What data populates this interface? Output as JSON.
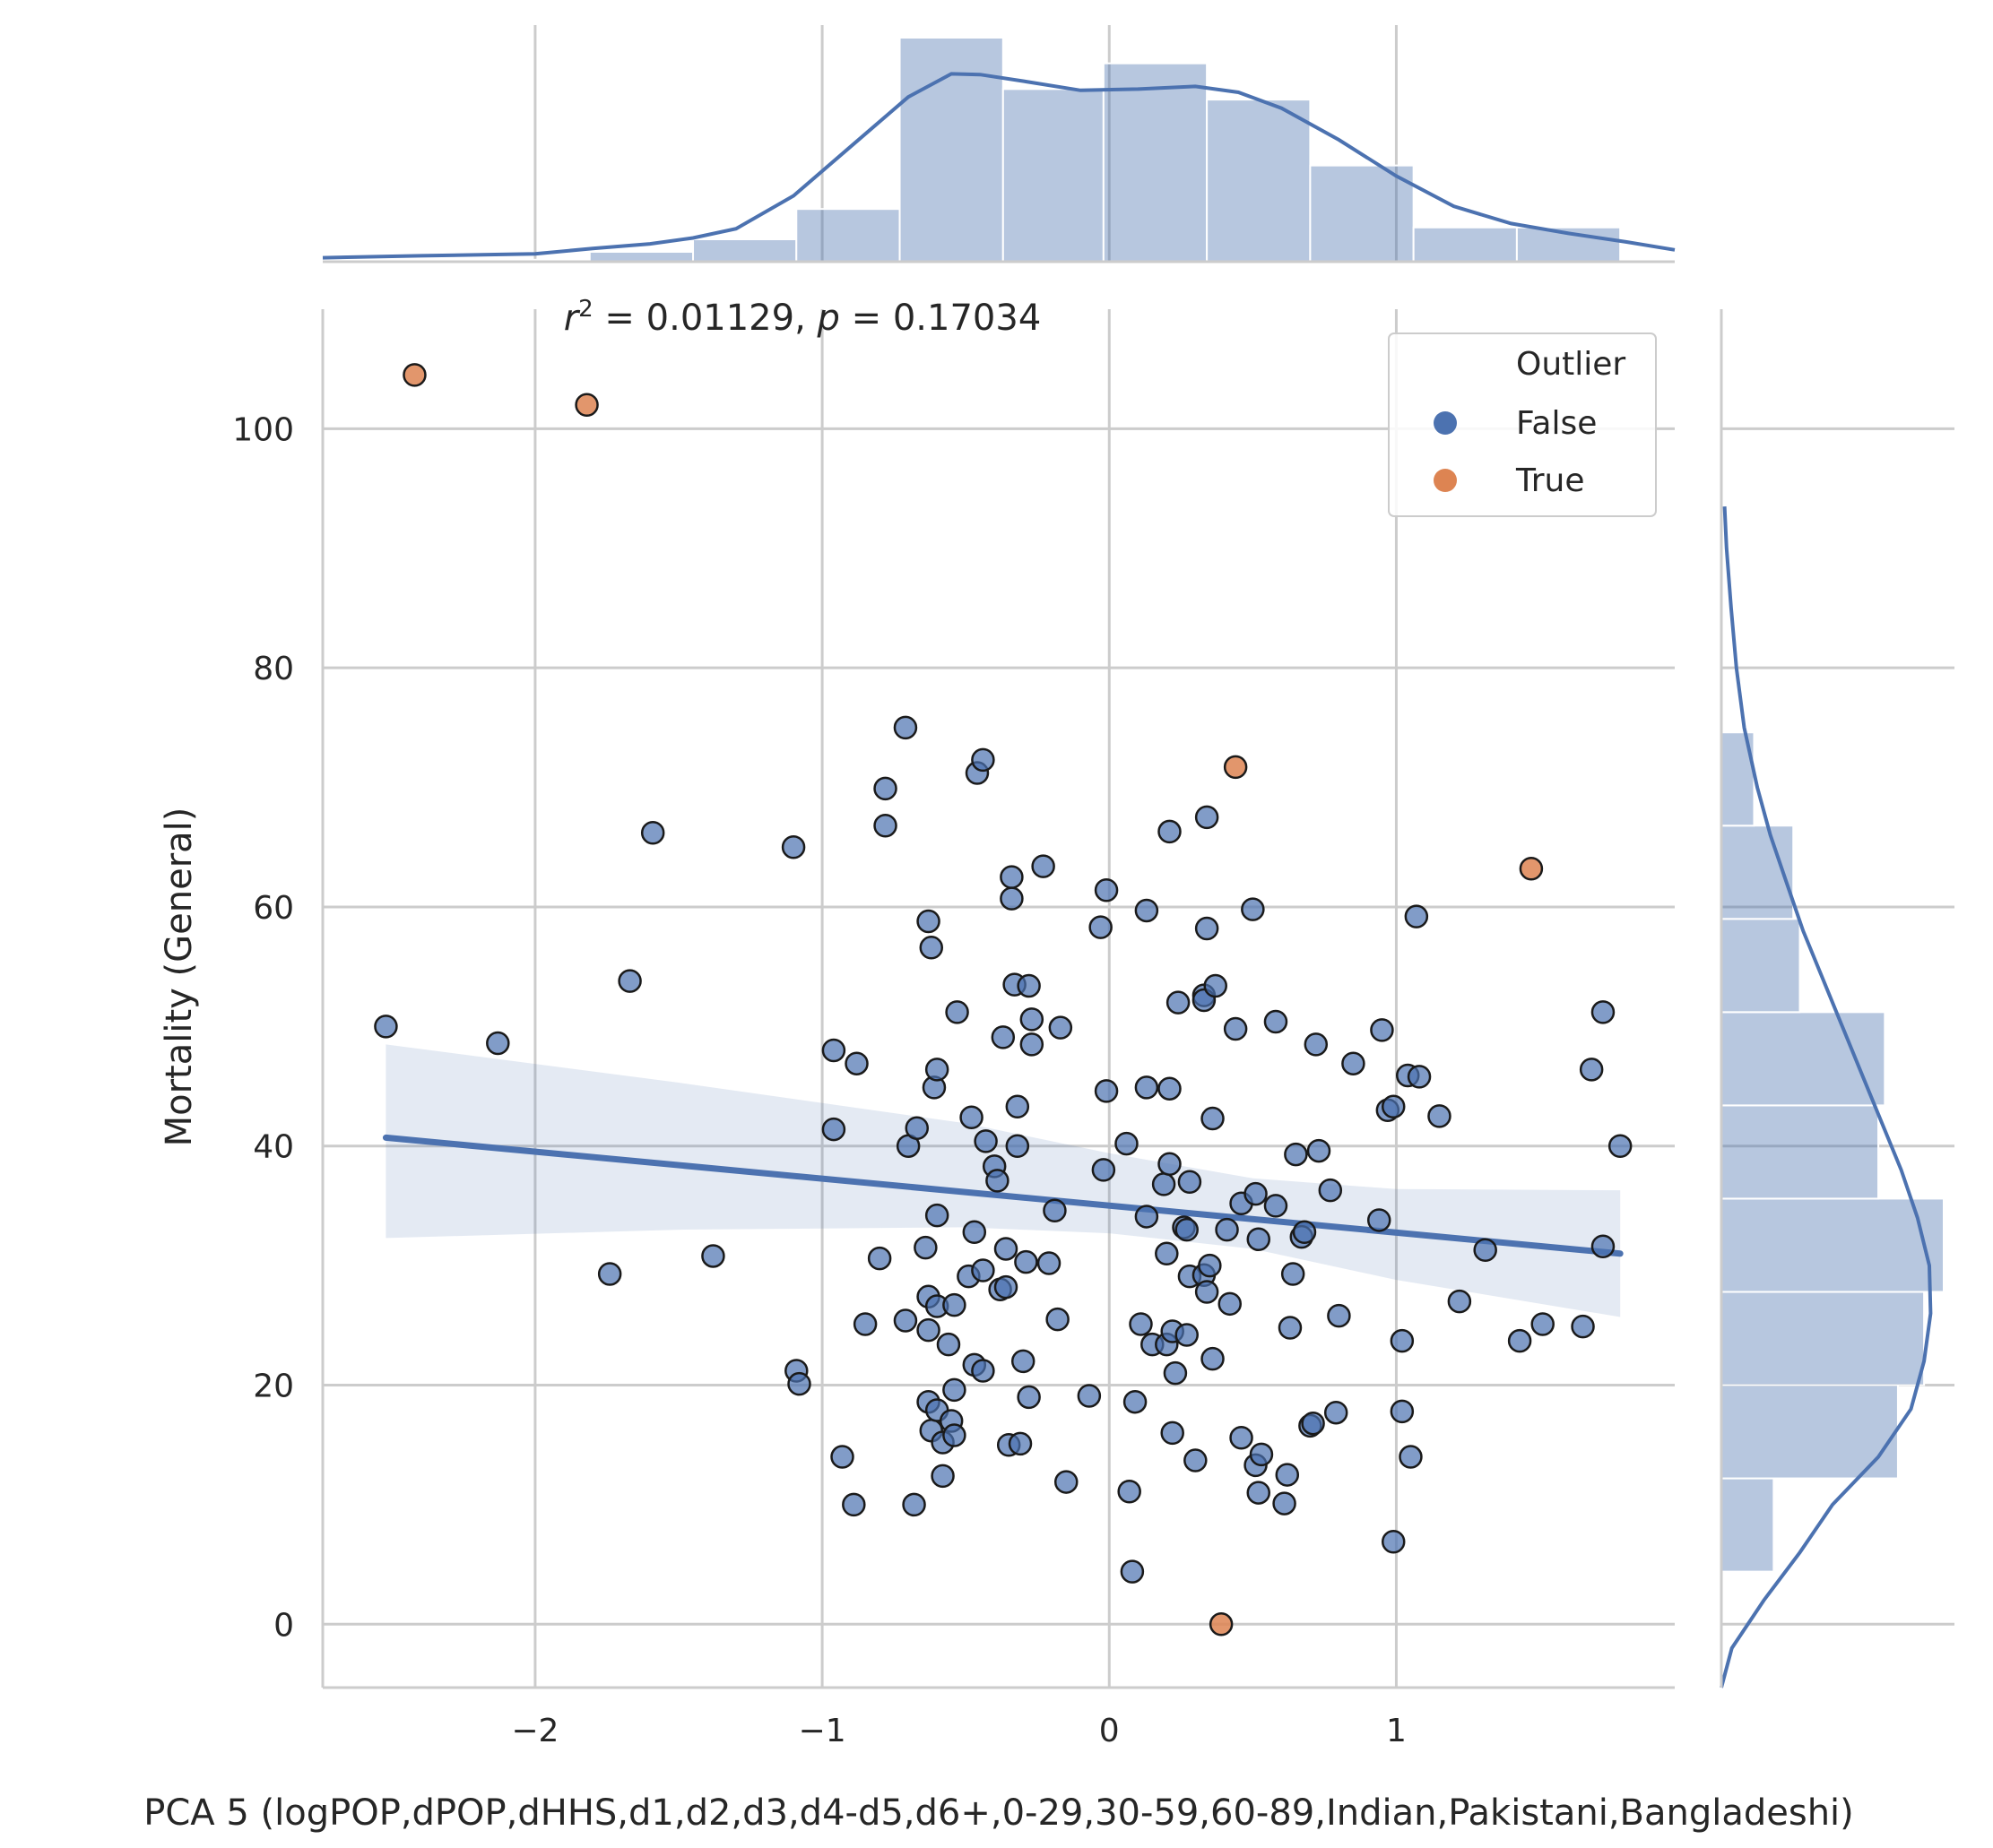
{
  "chart_data": {
    "type": "scatter",
    "annotation": {
      "r_sym": "r",
      "r_sup": "2",
      "rest": " = 0.01129, ",
      "p_sym": "p",
      "p_rest": " = 0.17034"
    },
    "xlabel": "PCA 5 (logPOP,dPOP,dHHS,d1,d2,d3,d4-d5,d6+,0-29,30-59,60-89,Indian,Pakistani,Bangladeshi)",
    "ylabel": "Mortality (General)",
    "xlim": [
      -2.74,
      1.97
    ],
    "ylim": [
      -5.3,
      110
    ],
    "xticks": [
      -2,
      -1,
      0,
      1
    ],
    "xtick_labels": [
      "−2",
      "−1",
      "0",
      "1"
    ],
    "yticks": [
      0,
      20,
      40,
      60,
      80,
      100
    ],
    "ytick_labels": [
      "0",
      "20",
      "40",
      "60",
      "80",
      "100"
    ],
    "grid": true,
    "legend": {
      "title": "Outlier",
      "placement": "top-right",
      "entries": [
        {
          "label": "False",
          "color": "#4c72b0"
        },
        {
          "label": "True",
          "color": "#dd8452"
        }
      ]
    },
    "colors": {
      "false": "#4c72b0",
      "true": "#dd8452",
      "grid": "#cccccc"
    },
    "series": [
      {
        "name": "False",
        "points": [
          [
            -2.52,
            50.0
          ],
          [
            -2.13,
            48.6
          ],
          [
            -1.74,
            29.3
          ],
          [
            -1.67,
            53.8
          ],
          [
            -1.59,
            66.2
          ],
          [
            -1.38,
            30.8
          ],
          [
            -1.1,
            65.0
          ],
          [
            -1.09,
            21.2
          ],
          [
            -1.08,
            20.1
          ],
          [
            -0.96,
            48.0
          ],
          [
            -0.96,
            41.4
          ],
          [
            -0.93,
            14.0
          ],
          [
            -0.89,
            10.0
          ],
          [
            -0.88,
            46.9
          ],
          [
            -0.85,
            25.1
          ],
          [
            -0.8,
            30.6
          ],
          [
            -0.78,
            69.9
          ],
          [
            -0.78,
            66.8
          ],
          [
            -0.71,
            75.0
          ],
          [
            -0.71,
            25.4
          ],
          [
            -0.7,
            40.0
          ],
          [
            -0.68,
            10.0
          ],
          [
            -0.67,
            41.5
          ],
          [
            -0.64,
            31.5
          ],
          [
            -0.63,
            27.4
          ],
          [
            -0.63,
            24.6
          ],
          [
            -0.63,
            18.6
          ],
          [
            -0.63,
            58.8
          ],
          [
            -0.62,
            56.6
          ],
          [
            -0.62,
            16.2
          ],
          [
            -0.61,
            44.9
          ],
          [
            -0.6,
            26.6
          ],
          [
            -0.6,
            46.4
          ],
          [
            -0.6,
            17.9
          ],
          [
            -0.6,
            34.2
          ],
          [
            -0.58,
            15.2
          ],
          [
            -0.58,
            12.4
          ],
          [
            -0.56,
            23.4
          ],
          [
            -0.55,
            17.0
          ],
          [
            -0.54,
            15.8
          ],
          [
            -0.54,
            26.7
          ],
          [
            -0.54,
            19.6
          ],
          [
            -0.53,
            51.2
          ],
          [
            -0.49,
            29.1
          ],
          [
            -0.48,
            42.4
          ],
          [
            -0.47,
            21.7
          ],
          [
            -0.47,
            32.8
          ],
          [
            -0.46,
            71.2
          ],
          [
            -0.44,
            72.3
          ],
          [
            -0.44,
            21.2
          ],
          [
            -0.44,
            29.6
          ],
          [
            -0.43,
            40.4
          ],
          [
            -0.4,
            38.3
          ],
          [
            -0.39,
            37.1
          ],
          [
            -0.38,
            28.0
          ],
          [
            -0.37,
            49.1
          ],
          [
            -0.36,
            31.4
          ],
          [
            -0.36,
            28.2
          ],
          [
            -0.35,
            15.0
          ],
          [
            -0.34,
            62.5
          ],
          [
            -0.34,
            60.7
          ],
          [
            -0.33,
            53.5
          ],
          [
            -0.32,
            43.3
          ],
          [
            -0.32,
            40.0
          ],
          [
            -0.31,
            15.1
          ],
          [
            -0.3,
            22.0
          ],
          [
            -0.29,
            30.3
          ],
          [
            -0.28,
            53.4
          ],
          [
            -0.28,
            19.0
          ],
          [
            -0.27,
            50.6
          ],
          [
            -0.27,
            48.5
          ],
          [
            -0.23,
            63.4
          ],
          [
            -0.21,
            30.2
          ],
          [
            -0.19,
            34.6
          ],
          [
            -0.18,
            25.5
          ],
          [
            -0.17,
            49.9
          ],
          [
            -0.15,
            11.9
          ],
          [
            -0.07,
            19.1
          ],
          [
            -0.03,
            58.3
          ],
          [
            -0.02,
            38.0
          ],
          [
            -0.01,
            61.4
          ],
          [
            -0.01,
            44.6
          ],
          [
            0.06,
            40.2
          ],
          [
            0.07,
            11.1
          ],
          [
            0.08,
            4.4
          ],
          [
            0.09,
            18.6
          ],
          [
            0.11,
            25.1
          ],
          [
            0.13,
            34.1
          ],
          [
            0.13,
            44.9
          ],
          [
            0.13,
            59.7
          ],
          [
            0.15,
            23.4
          ],
          [
            0.19,
            36.8
          ],
          [
            0.2,
            31.0
          ],
          [
            0.2,
            23.4
          ],
          [
            0.21,
            38.5
          ],
          [
            0.21,
            44.8
          ],
          [
            0.21,
            66.3
          ],
          [
            0.22,
            24.5
          ],
          [
            0.22,
            16.0
          ],
          [
            0.23,
            21.0
          ],
          [
            0.24,
            52.0
          ],
          [
            0.26,
            33.2
          ],
          [
            0.27,
            24.2
          ],
          [
            0.27,
            33.0
          ],
          [
            0.28,
            37.0
          ],
          [
            0.28,
            29.1
          ],
          [
            0.3,
            13.7
          ],
          [
            0.33,
            29.2
          ],
          [
            0.33,
            52.6
          ],
          [
            0.33,
            52.2
          ],
          [
            0.34,
            67.5
          ],
          [
            0.34,
            58.2
          ],
          [
            0.34,
            27.8
          ],
          [
            0.35,
            30.0
          ],
          [
            0.36,
            22.2
          ],
          [
            0.36,
            42.3
          ],
          [
            0.37,
            53.4
          ],
          [
            0.41,
            33.0
          ],
          [
            0.42,
            26.8
          ],
          [
            0.44,
            49.8
          ],
          [
            0.46,
            35.2
          ],
          [
            0.46,
            15.6
          ],
          [
            0.5,
            59.8
          ],
          [
            0.51,
            36.0
          ],
          [
            0.51,
            13.3
          ],
          [
            0.52,
            32.2
          ],
          [
            0.52,
            11.0
          ],
          [
            0.53,
            14.2
          ],
          [
            0.58,
            35.0
          ],
          [
            0.58,
            50.4
          ],
          [
            0.61,
            10.1
          ],
          [
            0.62,
            12.5
          ],
          [
            0.63,
            24.8
          ],
          [
            0.64,
            29.3
          ],
          [
            0.65,
            39.3
          ],
          [
            0.67,
            32.4
          ],
          [
            0.68,
            32.8
          ],
          [
            0.7,
            16.6
          ],
          [
            0.71,
            16.8
          ],
          [
            0.72,
            48.5
          ],
          [
            0.73,
            39.6
          ],
          [
            0.77,
            36.3
          ],
          [
            0.79,
            17.7
          ],
          [
            0.8,
            25.8
          ],
          [
            0.85,
            46.9
          ],
          [
            0.94,
            33.8
          ],
          [
            0.95,
            49.7
          ],
          [
            0.97,
            43.0
          ],
          [
            0.99,
            43.3
          ],
          [
            0.99,
            6.9
          ],
          [
            1.02,
            23.7
          ],
          [
            1.02,
            17.8
          ],
          [
            1.04,
            45.9
          ],
          [
            1.05,
            14.0
          ],
          [
            1.07,
            59.2
          ],
          [
            1.08,
            45.8
          ],
          [
            1.15,
            42.5
          ],
          [
            1.22,
            27.0
          ],
          [
            1.31,
            31.3
          ],
          [
            1.43,
            23.7
          ],
          [
            1.51,
            25.1
          ],
          [
            1.65,
            24.9
          ],
          [
            1.68,
            46.4
          ],
          [
            1.72,
            31.6
          ],
          [
            1.72,
            51.2
          ],
          [
            1.78,
            40.0
          ]
        ]
      },
      {
        "name": "True",
        "points": [
          [
            -2.42,
            104.5
          ],
          [
            -1.82,
            102.0
          ],
          [
            0.44,
            71.7
          ],
          [
            1.47,
            63.2
          ],
          [
            0.39,
            0.0
          ]
        ]
      }
    ],
    "regression": {
      "x_range": [
        -2.52,
        1.78
      ],
      "y_start": 40.7,
      "y_end": 31.0,
      "ci_upper": [
        [
          -2.52,
          48.5
        ],
        [
          -1.5,
          45.3
        ],
        [
          -0.5,
          41.9
        ],
        [
          0.0,
          39.4
        ],
        [
          0.5,
          37.3
        ],
        [
          1.0,
          36.4
        ],
        [
          1.78,
          36.3
        ]
      ],
      "ci_lower": [
        [
          1.78,
          25.7
        ],
        [
          1.0,
          28.8
        ],
        [
          0.5,
          31.4
        ],
        [
          0.0,
          32.7
        ],
        [
          -0.5,
          33.2
        ],
        [
          -1.5,
          33.0
        ],
        [
          -2.52,
          32.3
        ]
      ]
    },
    "marginal_x": {
      "type": "histogram",
      "bin_edges": [
        -2.52,
        -2.16,
        -1.81,
        -1.45,
        -1.09,
        -0.73,
        -0.37,
        -0.02,
        0.34,
        0.7,
        1.06,
        1.42,
        1.78
      ],
      "counts": [
        0.1,
        0.3,
        1.5,
        3.4,
        8.0,
        34.0,
        26.2,
        30.1,
        24.6,
        14.6,
        5.2,
        5.2
      ],
      "kde": [
        [
          -2.74,
          0.6
        ],
        [
          -2.4,
          0.9
        ],
        [
          -2.0,
          1.2
        ],
        [
          -1.8,
          2.0
        ],
        [
          -1.6,
          2.7
        ],
        [
          -1.45,
          3.6
        ],
        [
          -1.3,
          5.0
        ],
        [
          -1.1,
          10.0
        ],
        [
          -0.9,
          17.5
        ],
        [
          -0.7,
          25.0
        ],
        [
          -0.55,
          28.5
        ],
        [
          -0.45,
          28.4
        ],
        [
          -0.3,
          27.4
        ],
        [
          -0.1,
          26.0
        ],
        [
          0.1,
          26.2
        ],
        [
          0.3,
          26.6
        ],
        [
          0.45,
          25.7
        ],
        [
          0.6,
          23.3
        ],
        [
          0.8,
          18.5
        ],
        [
          1.0,
          13.0
        ],
        [
          1.2,
          8.4
        ],
        [
          1.4,
          5.8
        ],
        [
          1.6,
          4.3
        ],
        [
          1.8,
          3.0
        ],
        [
          1.97,
          1.8
        ]
      ]
    },
    "marginal_y": {
      "type": "histogram",
      "bin_edges": [
        4.4,
        12.2,
        20.0,
        27.8,
        35.6,
        43.4,
        51.2,
        59.0,
        66.8,
        74.6
      ],
      "counts": [
        8,
        27,
        31,
        34,
        24,
        25,
        12,
        11,
        5
      ],
      "kde": [
        [
          -5.3,
          0.0
        ],
        [
          -2,
          1.6
        ],
        [
          2,
          6.5
        ],
        [
          6,
          12.0
        ],
        [
          10,
          17.0
        ],
        [
          14,
          24.0
        ],
        [
          18,
          29.0
        ],
        [
          22,
          31.0
        ],
        [
          26,
          32.0
        ],
        [
          30,
          31.8
        ],
        [
          34,
          30.0
        ],
        [
          38,
          27.5
        ],
        [
          42,
          24.5
        ],
        [
          46,
          21.5
        ],
        [
          50,
          18.5
        ],
        [
          54,
          15.5
        ],
        [
          58,
          12.5
        ],
        [
          62,
          10.0
        ],
        [
          66,
          7.5
        ],
        [
          70,
          5.5
        ],
        [
          75,
          3.5
        ],
        [
          80,
          2.3
        ],
        [
          85,
          1.5
        ],
        [
          90,
          0.8
        ],
        [
          93.5,
          0.5
        ]
      ]
    }
  }
}
